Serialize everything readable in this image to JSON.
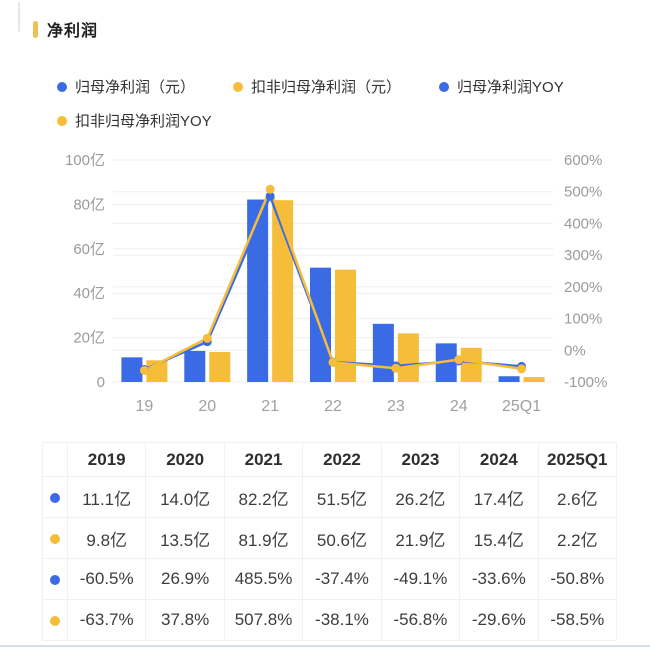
{
  "title": "净利润",
  "colors": {
    "blue": "#3a6be4",
    "yellow": "#f6bd3b",
    "grid": "#efefef",
    "baseline": "#e3e3e3",
    "axis_text": "#9b9b9b",
    "title_marker": "#ecc156",
    "divider": "#d8dee6"
  },
  "legend": [
    {
      "label": "归母净利润（元）",
      "color": "blue"
    },
    {
      "label": "扣非归母净利润（元）",
      "color": "yellow"
    },
    {
      "label": "归母净利润YOY",
      "color": "blue"
    },
    {
      "label": "扣非归母净利润YOY",
      "color": "yellow"
    }
  ],
  "chart_data": {
    "type": "combo-bar-line",
    "categories": [
      "19",
      "20",
      "21",
      "22",
      "23",
      "24",
      "25Q1"
    ],
    "series": [
      {
        "name": "归母净利润（元）",
        "type": "bar",
        "color": "blue",
        "unit": "亿",
        "values": [
          11.1,
          14.0,
          82.2,
          51.5,
          26.2,
          17.4,
          2.6
        ]
      },
      {
        "name": "扣非归母净利润（元）",
        "type": "bar",
        "color": "yellow",
        "unit": "亿",
        "values": [
          9.8,
          13.5,
          81.9,
          50.6,
          21.9,
          15.4,
          2.2
        ]
      },
      {
        "name": "归母净利润YOY",
        "type": "line",
        "color": "blue",
        "unit": "%",
        "values": [
          -60.5,
          26.9,
          485.5,
          -37.4,
          -49.1,
          -33.6,
          -50.8
        ]
      },
      {
        "name": "扣非归母净利润YOY",
        "type": "line",
        "color": "yellow",
        "unit": "%",
        "values": [
          -63.7,
          37.8,
          507.8,
          -38.1,
          -56.8,
          -29.6,
          -58.5
        ]
      }
    ],
    "left_axis": {
      "ticks": [
        "100亿",
        "80亿",
        "60亿",
        "40亿",
        "20亿",
        "0"
      ],
      "min": 0,
      "max": 100
    },
    "right_axis": {
      "ticks": [
        "600%",
        "500%",
        "400%",
        "300%",
        "200%",
        "100%",
        "0%",
        "-100%"
      ],
      "min": -100,
      "max": 600
    },
    "grid": true,
    "legend_position": "top"
  },
  "table": {
    "corner": "",
    "headers": [
      "2019",
      "2020",
      "2021",
      "2022",
      "2023",
      "2024",
      "2025Q1"
    ],
    "rows": [
      {
        "dot": "blue",
        "cells": [
          "11.1亿",
          "14.0亿",
          "82.2亿",
          "51.5亿",
          "26.2亿",
          "17.4亿",
          "2.6亿"
        ]
      },
      {
        "dot": "yellow",
        "cells": [
          "9.8亿",
          "13.5亿",
          "81.9亿",
          "50.6亿",
          "21.9亿",
          "15.4亿",
          "2.2亿"
        ]
      },
      {
        "dot": "blue",
        "cells": [
          "-60.5%",
          "26.9%",
          "485.5%",
          "-37.4%",
          "-49.1%",
          "-33.6%",
          "-50.8%"
        ]
      },
      {
        "dot": "yellow",
        "cells": [
          "-63.7%",
          "37.8%",
          "507.8%",
          "-38.1%",
          "-56.8%",
          "-29.6%",
          "-58.5%"
        ]
      }
    ]
  }
}
